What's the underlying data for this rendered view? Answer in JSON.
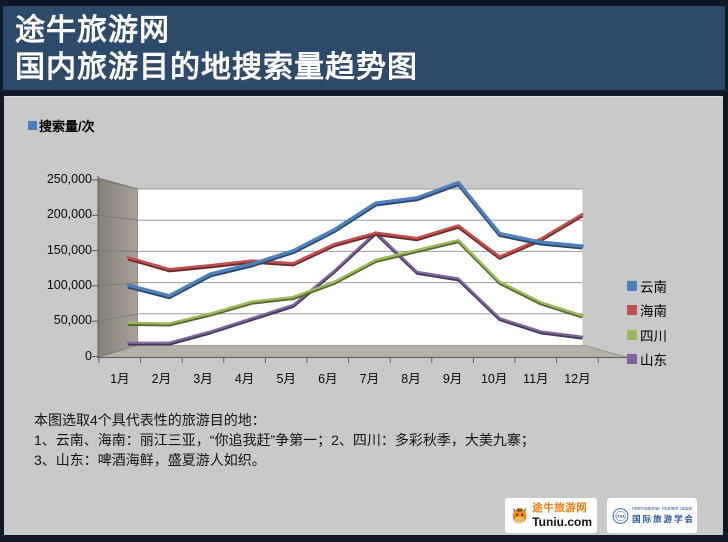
{
  "header": {
    "title_line1": "途牛旅游网",
    "title_line2": "国内旅游目的地搜索量趋势图"
  },
  "chart": {
    "unit_label": "搜索量/次",
    "y_tick_labels": [
      "250,000",
      "200,000",
      "150,000",
      "100,000",
      "50,000",
      "0"
    ]
  },
  "chart_data": {
    "type": "line",
    "style": "3d",
    "title": "国内旅游目的地搜索量趋势图",
    "ylabel": "搜索量/次",
    "xlabel": "",
    "ylim": [
      0,
      250000
    ],
    "ytick_step": 50000,
    "grid": "horizontal",
    "legend_position": "right",
    "categories": [
      "1月",
      "2月",
      "3月",
      "4月",
      "5月",
      "6月",
      "7月",
      "8月",
      "9月",
      "10月",
      "11月",
      "12月"
    ],
    "series": [
      {
        "name": "云南",
        "color": "#4F81BD",
        "values": [
          98000,
          82000,
          115000,
          130000,
          150000,
          182000,
          222000,
          230000,
          253000,
          176000,
          163000,
          157000
        ]
      },
      {
        "name": "海南",
        "color": "#C0504D",
        "values": [
          140000,
          122000,
          128000,
          135000,
          131000,
          160000,
          177000,
          169000,
          188000,
          141000,
          168000,
          205000
        ]
      },
      {
        "name": "四川",
        "color": "#9BBB59",
        "values": [
          41000,
          40000,
          55000,
          73000,
          80000,
          103000,
          136000,
          151000,
          166000,
          103000,
          72000,
          52000
        ]
      },
      {
        "name": "山东",
        "color": "#8064A2",
        "values": [
          11000,
          11000,
          28000,
          48000,
          68000,
          120000,
          178000,
          118000,
          108000,
          48000,
          28000,
          20000
        ]
      }
    ]
  },
  "footnote": {
    "line1": "本图选取4个具代表性的旅游目的地：",
    "line2": "1、云南、海南：丽江三亚，“你追我赶”争第一；2、四川：多彩秋季，大美九寨；",
    "line3": "3、山东：啤酒海鲜，盛夏游人如织。"
  },
  "footer": {
    "tuniu_name": "途牛旅游网",
    "tuniu_domain": "Tuniu.com",
    "itsa_abbr": "ITSA",
    "itsa_en": "International Tourism Studies Association",
    "itsa_cn": "国际旅游学会"
  }
}
